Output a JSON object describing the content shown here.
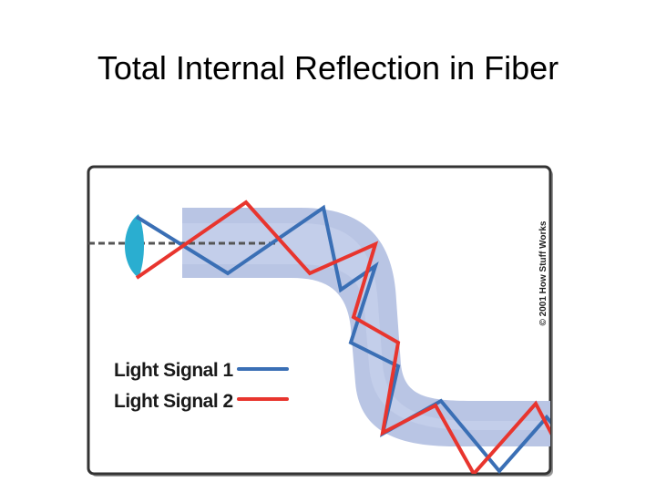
{
  "header": {
    "title": "Total Internal Reflection in Fiber"
  },
  "diagram": {
    "legend": [
      {
        "label": "Light Signal 1"
      },
      {
        "label": "Light Signal 2"
      }
    ],
    "credit": "© 2001 How Stuff Works"
  }
}
